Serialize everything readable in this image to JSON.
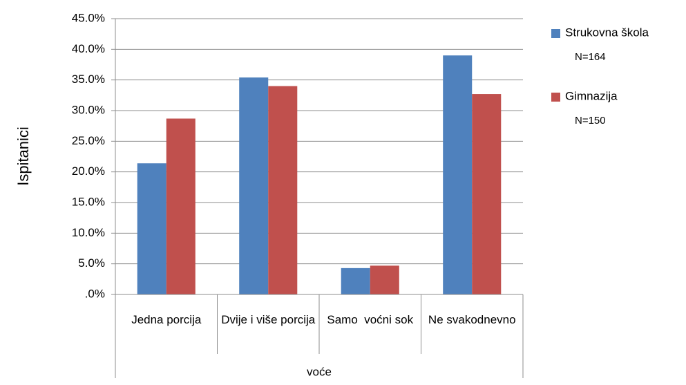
{
  "chart_data": {
    "type": "bar",
    "x_group_label": "voće",
    "y_label": "Ispitanici",
    "categories": [
      "Jedna porcija",
      "Dvije i više porcija",
      "Samo  voćni sok",
      "Ne svakodnevno"
    ],
    "series": [
      {
        "name": "Strukovna škola",
        "note": "N=164",
        "color": "#4f81bd",
        "values": [
          21.4,
          35.4,
          4.3,
          39.0
        ]
      },
      {
        "name": "Gimnazija",
        "note": "N=150",
        "color": "#c0504d",
        "values": [
          28.7,
          34.0,
          4.7,
          32.7
        ]
      }
    ],
    "ylim": [
      0,
      45
    ],
    "yticks": [
      {
        "value": 0,
        "label": ".0%"
      },
      {
        "value": 5,
        "label": "5.0%"
      },
      {
        "value": 10,
        "label": "10.0%"
      },
      {
        "value": 15,
        "label": "15.0%"
      },
      {
        "value": 20,
        "label": "20.0%"
      },
      {
        "value": 25,
        "label": "25.0%"
      },
      {
        "value": 30,
        "label": "30.0%"
      },
      {
        "value": 35,
        "label": "35.0%"
      },
      {
        "value": 40,
        "label": "40.0%"
      },
      {
        "value": 45,
        "label": "45.0%"
      }
    ],
    "grid": true,
    "legend": "right"
  }
}
